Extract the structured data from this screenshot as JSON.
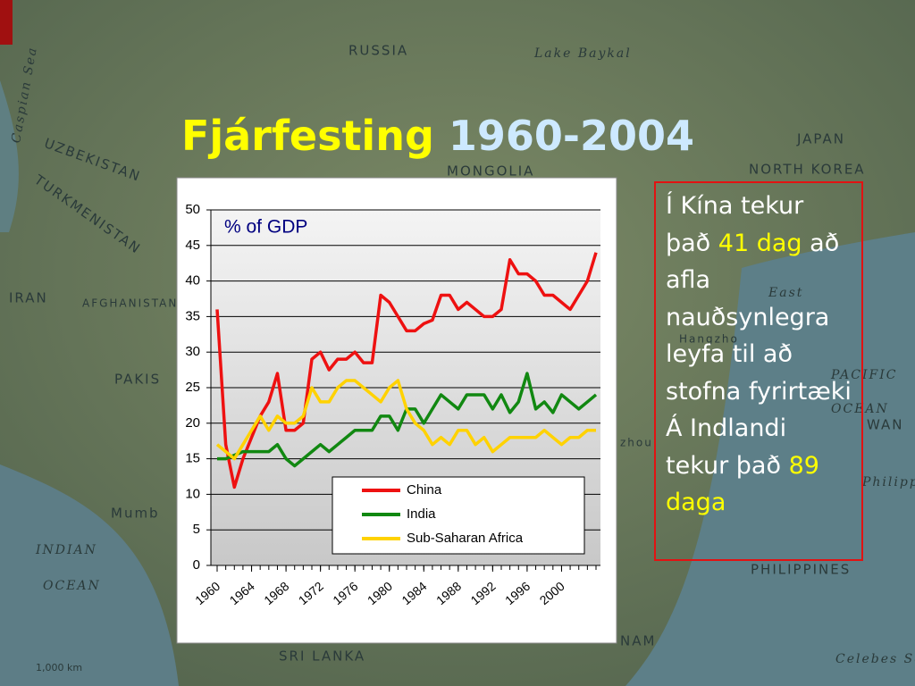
{
  "header": {
    "title": "Fjárfesting",
    "title_years": "1960-2004"
  },
  "map": {
    "labels": [
      "RUSSIA",
      "Lake Baykal",
      "MONGOLIA",
      "JAPAN",
      "NORTH KOREA",
      "Caspian Sea",
      "UZBEKISTAN",
      "TURKMENISTAN",
      "IRAN",
      "AFGHANISTAN",
      "PAKIS",
      "Mumb",
      "INDIAN",
      "OCEAN",
      "PACIFIC",
      "OCEAN",
      "East",
      "Hangzho",
      "PHILIPPINES",
      "SRI LANKA",
      "Celebes Sea",
      "1,000 km",
      "NAM",
      "zhou",
      "Philippine Sea",
      "WAN"
    ]
  },
  "chart_data": {
    "type": "line",
    "title": "% of GDP",
    "x": [
      1960,
      1961,
      1962,
      1963,
      1964,
      1965,
      1966,
      1967,
      1968,
      1969,
      1970,
      1971,
      1972,
      1973,
      1974,
      1975,
      1976,
      1977,
      1978,
      1979,
      1980,
      1981,
      1982,
      1983,
      1984,
      1985,
      1986,
      1987,
      1988,
      1989,
      1990,
      1991,
      1992,
      1993,
      1994,
      1995,
      1996,
      1997,
      1998,
      1999,
      2000,
      2001,
      2002,
      2003,
      2004
    ],
    "xlim": [
      1960,
      2004
    ],
    "xticks": [
      1960,
      1964,
      1968,
      1972,
      1976,
      1980,
      1984,
      1988,
      1992,
      1996,
      2000
    ],
    "ylim": [
      0,
      50
    ],
    "yticks": [
      0,
      5,
      10,
      15,
      20,
      25,
      30,
      35,
      40,
      45,
      50
    ],
    "grid": true,
    "legend": "lower right",
    "series": [
      {
        "name": "China",
        "color": "#ee1111",
        "values": [
          36,
          17,
          11,
          15,
          18,
          21,
          23,
          27,
          19,
          19,
          20,
          29,
          30,
          27.5,
          29,
          29,
          30,
          28.5,
          28.5,
          38,
          37,
          35,
          33,
          33,
          34,
          34.5,
          38,
          38,
          36,
          37,
          36,
          35,
          35,
          36,
          43,
          41,
          41,
          40,
          38,
          38,
          37,
          36,
          38,
          40,
          44
        ]
      },
      {
        "name": "India",
        "color": "#118811",
        "values": [
          15,
          15,
          15.5,
          16,
          16,
          16,
          16,
          17,
          15,
          14,
          15,
          16,
          17,
          16,
          17,
          18,
          19,
          19,
          19,
          21,
          21,
          19,
          22,
          22,
          20,
          22,
          24,
          23,
          22,
          24,
          24,
          24,
          22,
          24,
          21.5,
          23,
          27,
          22,
          23,
          21.5,
          24,
          23,
          22,
          23,
          24
        ]
      },
      {
        "name": "Sub-Saharan Africa",
        "color": "#ffd200",
        "values": [
          17,
          16,
          15,
          17,
          19,
          21,
          19,
          21,
          20,
          20,
          21,
          25,
          23,
          23,
          25,
          26,
          26,
          25,
          24,
          23,
          25,
          26,
          22,
          20,
          19,
          17,
          18,
          17,
          19,
          19,
          17,
          18,
          16,
          17,
          18,
          18,
          18,
          18,
          19,
          18,
          17,
          18,
          18,
          19,
          19
        ]
      }
    ]
  },
  "sidebar": {
    "items": [
      {
        "before": "Í Kína tekur það ",
        "highlight": "41 dag",
        "after": " að afla nauðsynlegra leyfa til að stofna fyrirtæki"
      },
      {
        "before": "Á Indlandi tekur það ",
        "highlight": "89 daga"
      }
    ]
  }
}
